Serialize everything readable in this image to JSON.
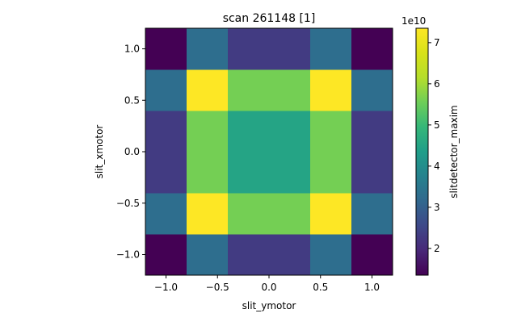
{
  "chart_data": {
    "type": "heatmap",
    "title": "scan 261148 [1]",
    "xlabel": "slit_ymotor",
    "ylabel": "slit_xmotor",
    "colorbar_label": "slitdetector_maxim",
    "colorbar_offset": "1e10",
    "colormap": "viridis",
    "x_edges": [
      -1.2,
      -0.8,
      -0.4,
      0.4,
      0.8,
      1.2
    ],
    "y_edges": [
      -1.2,
      -0.8,
      -0.4,
      0.4,
      0.8,
      1.2
    ],
    "xlim": [
      -1.2,
      1.2
    ],
    "ylim": [
      -1.2,
      1.2
    ],
    "x_ticks": [
      -1.0,
      -0.5,
      0.0,
      0.5,
      1.0
    ],
    "y_ticks": [
      -1.0,
      -0.5,
      0.0,
      0.5,
      1.0
    ],
    "x_tick_labels": [
      "−1.0",
      "−0.5",
      "0.0",
      "0.5",
      "1.0"
    ],
    "y_tick_labels": [
      "−1.0",
      "−0.5",
      "0.0",
      "0.5",
      "1.0"
    ],
    "values_note_units": "1e10",
    "values": [
      [
        1.35,
        3.3,
        2.3,
        3.3,
        1.35
      ],
      [
        3.3,
        7.35,
        5.6,
        7.35,
        3.3
      ],
      [
        2.3,
        5.6,
        4.5,
        5.6,
        2.3
      ],
      [
        3.3,
        7.35,
        5.6,
        7.35,
        3.3
      ],
      [
        1.35,
        3.3,
        2.3,
        3.3,
        1.35
      ]
    ],
    "clim": [
      1.35,
      7.35
    ],
    "colorbar_ticks": [
      2,
      3,
      4,
      5,
      6,
      7
    ],
    "colorbar_tick_labels": [
      "2",
      "3",
      "4",
      "5",
      "6",
      "7"
    ]
  }
}
